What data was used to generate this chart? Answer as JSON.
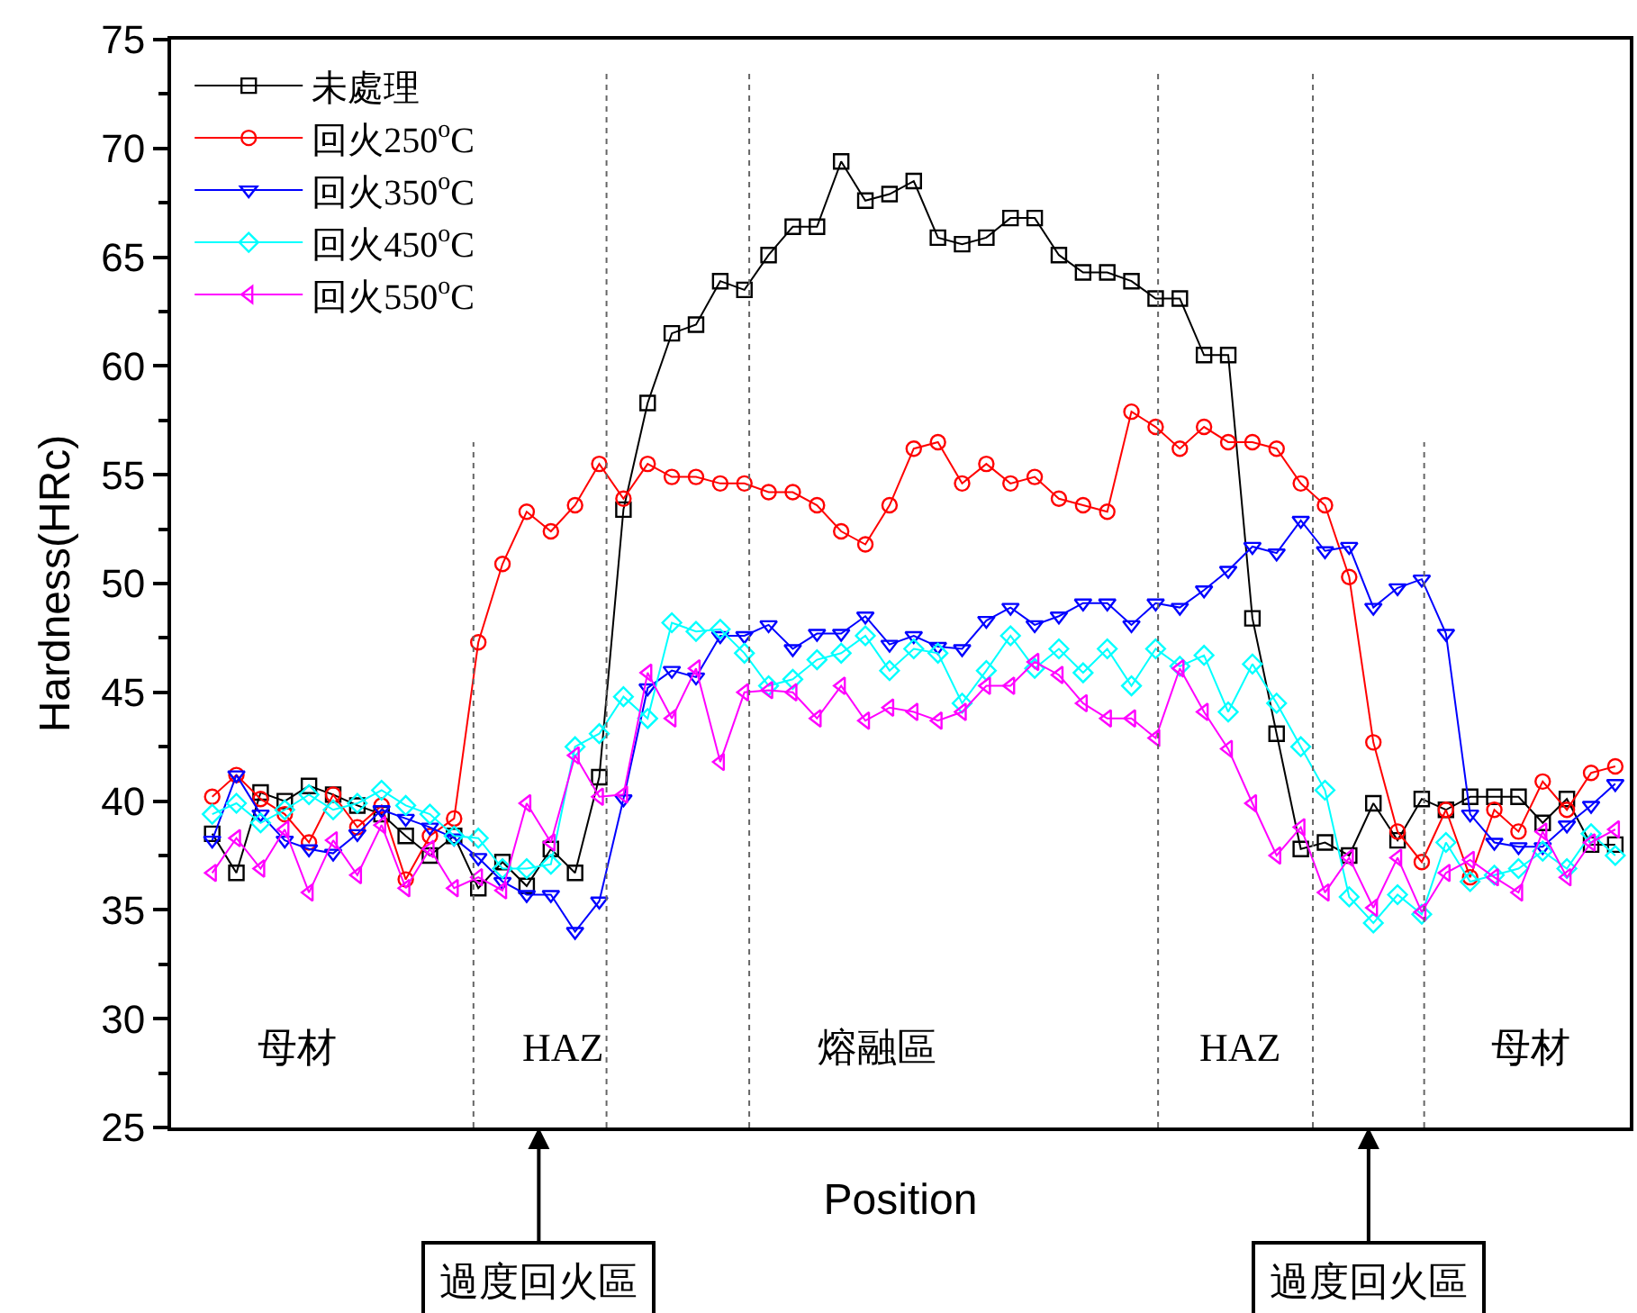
{
  "chart_data": {
    "type": "line",
    "xlabel": "Position",
    "ylabel": "Hardness(HRc)",
    "categories": [
      null,
      null,
      null,
      null,
      null,
      null,
      null,
      null,
      null,
      null,
      null,
      null,
      null,
      null,
      null,
      null,
      null,
      null,
      null,
      null,
      null,
      null,
      null,
      null,
      null,
      null,
      null,
      null,
      null,
      null,
      null,
      null,
      null,
      null,
      null,
      null,
      null,
      null,
      null,
      null,
      null,
      null,
      null,
      null,
      null,
      null,
      null,
      null,
      null,
      null,
      null,
      null,
      null,
      null,
      null,
      null,
      null,
      null,
      null
    ],
    "ylim": [
      25,
      75
    ],
    "yticks": [
      25,
      30,
      35,
      40,
      45,
      50,
      55,
      60,
      65,
      70,
      75
    ],
    "legend": "top left",
    "series": [
      {
        "name": "未處理",
        "color": "#000000",
        "marker": "square",
        "values": [
          38.5,
          36.7,
          40.4,
          40.0,
          40.7,
          40.3,
          39.8,
          39.4,
          38.4,
          37.5,
          38.4,
          36.0,
          37.2,
          36.1,
          37.8,
          36.7,
          41.1,
          53.4,
          58.3,
          61.5,
          61.9,
          63.9,
          63.5,
          65.1,
          66.4,
          66.4,
          69.4,
          67.6,
          67.9,
          68.5,
          65.9,
          65.6,
          65.9,
          66.8,
          66.8,
          65.1,
          64.3,
          64.3,
          63.9,
          63.1,
          63.1,
          60.5,
          60.5,
          48.4,
          43.1,
          37.8,
          38.1,
          37.5,
          39.9,
          38.2,
          40.1,
          39.6,
          40.2,
          40.2,
          40.2,
          39.0,
          40.1,
          38.0,
          38.0
        ]
      },
      {
        "name": "回火250$^{o}$C",
        "color": "#ff0000",
        "marker": "circle",
        "values": [
          40.2,
          41.2,
          40.1,
          39.4,
          38.1,
          40.3,
          38.8,
          39.8,
          36.4,
          38.4,
          39.2,
          47.3,
          50.9,
          53.3,
          52.4,
          53.6,
          55.5,
          53.9,
          55.5,
          54.9,
          54.9,
          54.6,
          54.6,
          54.2,
          54.2,
          53.6,
          52.4,
          51.8,
          53.6,
          56.2,
          56.5,
          54.6,
          55.5,
          54.6,
          54.9,
          53.9,
          53.6,
          53.3,
          57.9,
          57.2,
          56.2,
          57.2,
          56.5,
          56.5,
          56.2,
          54.6,
          53.6,
          50.3,
          42.7,
          38.6,
          37.2,
          39.6,
          36.5,
          39.6,
          38.6,
          40.9,
          39.6,
          41.3,
          41.6
        ]
      },
      {
        "name": "回火350$^{o}$C",
        "color": "#0000ff",
        "marker": "triangle-down",
        "values": [
          38.2,
          41.2,
          39.4,
          38.2,
          37.8,
          37.6,
          38.5,
          39.6,
          39.2,
          38.8,
          38.3,
          37.4,
          36.3,
          35.7,
          35.7,
          34.0,
          35.4,
          40.1,
          45.2,
          46.0,
          45.7,
          47.6,
          47.6,
          48.1,
          47.0,
          47.7,
          47.7,
          48.5,
          47.2,
          47.6,
          47.1,
          47.0,
          48.3,
          48.9,
          48.1,
          48.5,
          49.1,
          49.1,
          48.1,
          49.1,
          48.9,
          49.7,
          50.6,
          51.7,
          51.4,
          52.9,
          51.5,
          51.7,
          48.9,
          49.8,
          50.2,
          47.7,
          39.4,
          38.1,
          37.9,
          37.9,
          38.9,
          39.8,
          40.8
        ]
      },
      {
        "name": "回火450$^{o}$C",
        "color": "#00ffff",
        "marker": "diamond",
        "values": [
          39.4,
          39.9,
          39.0,
          39.6,
          40.3,
          39.6,
          39.9,
          40.5,
          39.8,
          39.4,
          38.4,
          38.3,
          36.9,
          36.9,
          37.1,
          42.5,
          43.1,
          44.8,
          43.8,
          48.2,
          47.8,
          47.9,
          46.8,
          45.3,
          45.6,
          46.5,
          46.8,
          47.6,
          46.0,
          47.0,
          46.8,
          44.5,
          46.0,
          47.6,
          46.1,
          47.0,
          45.9,
          47.0,
          45.3,
          47.0,
          46.2,
          46.7,
          44.1,
          46.3,
          44.5,
          42.5,
          40.5,
          35.6,
          34.4,
          35.7,
          34.8,
          38.1,
          36.3,
          36.6,
          36.9,
          37.7,
          36.9,
          38.5,
          37.5
        ]
      },
      {
        "name": "回火550$^{o}$C",
        "color": "#ff00ff",
        "marker": "triangle-left",
        "values": [
          36.7,
          38.3,
          36.9,
          38.7,
          35.8,
          38.2,
          36.6,
          38.9,
          36.0,
          37.8,
          36.0,
          36.5,
          35.9,
          39.9,
          38.1,
          42.1,
          40.2,
          40.3,
          45.9,
          43.8,
          46.1,
          41.8,
          45.0,
          45.1,
          45.0,
          43.8,
          45.3,
          43.7,
          44.3,
          44.1,
          43.7,
          44.1,
          45.3,
          45.3,
          46.4,
          45.8,
          44.5,
          43.8,
          43.8,
          42.9,
          46.1,
          44.1,
          42.4,
          39.9,
          37.5,
          38.8,
          35.8,
          37.4,
          35.1,
          37.4,
          34.9,
          36.7,
          37.3,
          36.5,
          35.8,
          38.6,
          36.5,
          38.1,
          38.7
        ]
      }
    ],
    "annotations": [
      "母材",
      "HAZ",
      "熔融區",
      "HAZ",
      "母材",
      "過度回火區",
      "過度回火區"
    ]
  }
}
